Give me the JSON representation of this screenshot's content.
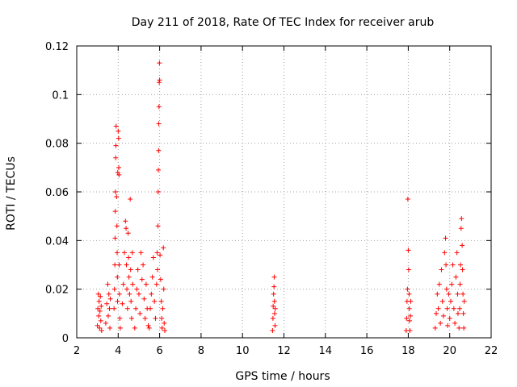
{
  "chart_data": {
    "type": "scatter",
    "title": "Day 211 of 2018, Rate Of TEC Index for receiver arub",
    "xlabel": "GPS time / hours",
    "ylabel": "ROTI / TECUs",
    "xlim": [
      2,
      22
    ],
    "ylim": [
      0,
      0.12
    ],
    "x_ticks": [
      2,
      4,
      6,
      8,
      10,
      12,
      14,
      16,
      18,
      20,
      22
    ],
    "y_ticks": [
      0,
      0.02,
      0.04,
      0.06,
      0.08,
      0.1,
      0.12
    ],
    "x_tick_labels": [
      "2",
      "4",
      "6",
      "8",
      "10",
      "12",
      "14",
      "16",
      "18",
      "20",
      "22"
    ],
    "y_tick_labels": [
      "0",
      "0.02",
      "0.04",
      "0.06",
      "0.08",
      "0.1",
      "0.12"
    ],
    "grid": true,
    "legend": "none",
    "marker": "+",
    "color": "#ff0000",
    "series": [
      {
        "name": "ROTI",
        "points": [
          [
            3.0,
            0.005
          ],
          [
            3.02,
            0.012
          ],
          [
            3.04,
            0.018
          ],
          [
            3.06,
            0.009
          ],
          [
            3.08,
            0.015
          ],
          [
            3.1,
            0.004
          ],
          [
            3.12,
            0.011
          ],
          [
            3.14,
            0.017
          ],
          [
            3.16,
            0.007
          ],
          [
            3.18,
            0.013
          ],
          [
            3.2,
            0.003
          ],
          [
            3.4,
            0.006
          ],
          [
            3.45,
            0.014
          ],
          [
            3.5,
            0.022
          ],
          [
            3.52,
            0.009
          ],
          [
            3.55,
            0.018
          ],
          [
            3.58,
            0.012
          ],
          [
            3.6,
            0.004
          ],
          [
            3.62,
            0.016
          ],
          [
            3.8,
            0.012
          ],
          [
            3.82,
            0.02
          ],
          [
            3.84,
            0.03
          ],
          [
            3.85,
            0.041
          ],
          [
            3.86,
            0.052
          ],
          [
            3.87,
            0.06
          ],
          [
            3.88,
            0.074
          ],
          [
            3.89,
            0.079
          ],
          [
            3.9,
            0.087
          ],
          [
            3.92,
            0.058
          ],
          [
            3.94,
            0.046
          ],
          [
            3.95,
            0.035
          ],
          [
            3.96,
            0.025
          ],
          [
            3.97,
            0.015
          ],
          [
            3.98,
            0.068
          ],
          [
            4.0,
            0.085
          ],
          [
            4.02,
            0.082
          ],
          [
            4.03,
            0.07
          ],
          [
            4.04,
            0.067
          ],
          [
            4.05,
            0.03
          ],
          [
            4.06,
            0.018
          ],
          [
            4.08,
            0.008
          ],
          [
            4.1,
            0.004
          ],
          [
            4.2,
            0.014
          ],
          [
            4.25,
            0.022
          ],
          [
            4.3,
            0.035
          ],
          [
            4.35,
            0.048
          ],
          [
            4.38,
            0.045
          ],
          [
            4.4,
            0.03
          ],
          [
            4.42,
            0.02
          ],
          [
            4.45,
            0.012
          ],
          [
            4.48,
            0.043
          ],
          [
            4.5,
            0.033
          ],
          [
            4.52,
            0.025
          ],
          [
            4.55,
            0.018
          ],
          [
            4.58,
            0.057
          ],
          [
            4.6,
            0.028
          ],
          [
            4.62,
            0.015
          ],
          [
            4.65,
            0.008
          ],
          [
            4.68,
            0.035
          ],
          [
            4.7,
            0.022
          ],
          [
            4.8,
            0.004
          ],
          [
            4.85,
            0.012
          ],
          [
            4.9,
            0.02
          ],
          [
            4.95,
            0.028
          ],
          [
            5.0,
            0.018
          ],
          [
            5.05,
            0.01
          ],
          [
            5.1,
            0.035
          ],
          [
            5.15,
            0.024
          ],
          [
            5.2,
            0.03
          ],
          [
            5.25,
            0.016
          ],
          [
            5.3,
            0.008
          ],
          [
            5.35,
            0.022
          ],
          [
            5.4,
            0.012
          ],
          [
            5.45,
            0.005
          ],
          [
            5.5,
            0.004
          ],
          [
            5.55,
            0.012
          ],
          [
            5.6,
            0.018
          ],
          [
            5.65,
            0.025
          ],
          [
            5.7,
            0.033
          ],
          [
            5.75,
            0.015
          ],
          [
            5.8,
            0.008
          ],
          [
            5.85,
            0.022
          ],
          [
            5.88,
            0.035
          ],
          [
            5.9,
            0.028
          ],
          [
            5.92,
            0.046
          ],
          [
            5.93,
            0.06
          ],
          [
            5.94,
            0.069
          ],
          [
            5.95,
            0.077
          ],
          [
            5.96,
            0.088
          ],
          [
            5.97,
            0.095
          ],
          [
            5.98,
            0.105
          ],
          [
            5.99,
            0.113
          ],
          [
            6.0,
            0.106
          ],
          [
            6.02,
            0.034
          ],
          [
            6.05,
            0.024
          ],
          [
            6.08,
            0.015
          ],
          [
            6.1,
            0.008
          ],
          [
            6.12,
            0.004
          ],
          [
            6.15,
            0.012
          ],
          [
            6.18,
            0.037
          ],
          [
            6.2,
            0.02
          ],
          [
            6.22,
            0.006
          ],
          [
            6.25,
            0.003
          ],
          [
            11.45,
            0.003
          ],
          [
            11.47,
            0.008
          ],
          [
            11.48,
            0.013
          ],
          [
            11.5,
            0.018
          ],
          [
            11.52,
            0.021
          ],
          [
            11.53,
            0.025
          ],
          [
            11.54,
            0.015
          ],
          [
            11.55,
            0.01
          ],
          [
            11.57,
            0.005
          ],
          [
            11.58,
            0.012
          ],
          [
            17.9,
            0.003
          ],
          [
            17.92,
            0.008
          ],
          [
            17.94,
            0.015
          ],
          [
            17.96,
            0.02
          ],
          [
            17.98,
            0.057
          ],
          [
            18.0,
            0.036
          ],
          [
            18.02,
            0.028
          ],
          [
            18.04,
            0.018
          ],
          [
            18.05,
            0.012
          ],
          [
            18.06,
            0.007
          ],
          [
            18.08,
            0.003
          ],
          [
            18.1,
            0.009
          ],
          [
            18.12,
            0.015
          ],
          [
            19.3,
            0.004
          ],
          [
            19.35,
            0.01
          ],
          [
            19.4,
            0.018
          ],
          [
            19.45,
            0.012
          ],
          [
            19.5,
            0.022
          ],
          [
            19.55,
            0.006
          ],
          [
            19.6,
            0.028
          ],
          [
            19.65,
            0.015
          ],
          [
            19.7,
            0.009
          ],
          [
            19.75,
            0.035
          ],
          [
            19.8,
            0.041
          ],
          [
            19.82,
            0.03
          ],
          [
            19.85,
            0.02
          ],
          [
            19.88,
            0.012
          ],
          [
            19.9,
            0.005
          ],
          [
            19.95,
            0.018
          ],
          [
            20.0,
            0.008
          ],
          [
            20.05,
            0.015
          ],
          [
            20.1,
            0.022
          ],
          [
            20.15,
            0.03
          ],
          [
            20.2,
            0.012
          ],
          [
            20.25,
            0.006
          ],
          [
            20.3,
            0.025
          ],
          [
            20.35,
            0.035
          ],
          [
            20.38,
            0.018
          ],
          [
            20.4,
            0.01
          ],
          [
            20.45,
            0.004
          ],
          [
            20.48,
            0.012
          ],
          [
            20.5,
            0.022
          ],
          [
            20.52,
            0.03
          ],
          [
            20.55,
            0.045
          ],
          [
            20.57,
            0.049
          ],
          [
            20.6,
            0.038
          ],
          [
            20.62,
            0.028
          ],
          [
            20.64,
            0.018
          ],
          [
            20.66,
            0.01
          ],
          [
            20.68,
            0.004
          ],
          [
            20.7,
            0.015
          ]
        ]
      }
    ]
  }
}
